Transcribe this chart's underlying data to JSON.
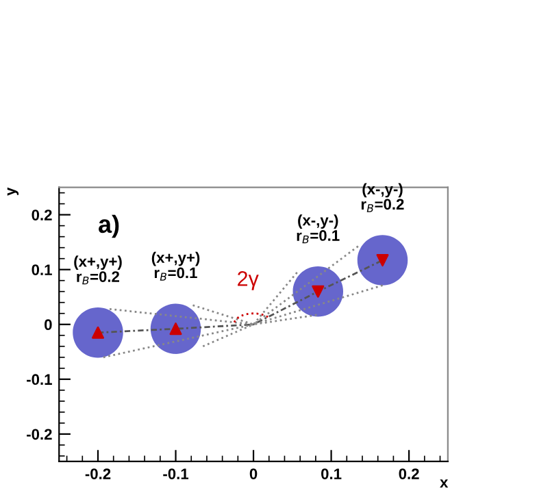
{
  "chart_data": {
    "type": "scatter",
    "xlabel": "x",
    "ylabel": "y",
    "xlim": [
      -0.25,
      0.25
    ],
    "ylim": [
      -0.25,
      0.25
    ],
    "xticks": [
      {
        "value": -0.24,
        "label": null
      },
      {
        "value": -0.22,
        "label": null
      },
      {
        "value": -0.2,
        "label": "-0.2"
      },
      {
        "value": -0.18,
        "label": null
      },
      {
        "value": -0.16,
        "label": null
      },
      {
        "value": -0.14,
        "label": null
      },
      {
        "value": -0.12,
        "label": null
      },
      {
        "value": -0.1,
        "label": "-0.1"
      },
      {
        "value": -0.08,
        "label": null
      },
      {
        "value": -0.06,
        "label": null
      },
      {
        "value": -0.04,
        "label": null
      },
      {
        "value": -0.02,
        "label": null
      },
      0,
      {
        "value": 0.02,
        "label": null
      },
      {
        "value": 0.04,
        "label": null
      },
      {
        "value": 0.06,
        "label": null
      },
      {
        "value": 0.08,
        "label": null
      },
      0.1,
      {
        "value": 0.12,
        "label": null
      },
      {
        "value": 0.14,
        "label": null
      },
      {
        "value": 0.16,
        "label": null
      },
      {
        "value": 0.18,
        "label": null
      },
      0.2,
      {
        "value": 0.22,
        "label": null
      },
      {
        "value": 0.24,
        "label": null
      }
    ],
    "yticks": [
      {
        "value": -0.24,
        "label": null
      },
      {
        "value": -0.22,
        "label": null
      },
      {
        "value": -0.2,
        "label": "-0.2"
      },
      {
        "value": -0.18,
        "label": null
      },
      {
        "value": -0.16,
        "label": null
      },
      {
        "value": -0.14,
        "label": null
      },
      {
        "value": -0.12,
        "label": null
      },
      {
        "value": -0.1,
        "label": "-0.1"
      },
      {
        "value": -0.08,
        "label": null
      },
      {
        "value": -0.06,
        "label": null
      },
      {
        "value": -0.04,
        "label": null
      },
      {
        "value": -0.02,
        "label": null
      },
      0,
      {
        "value": 0.02,
        "label": null
      },
      {
        "value": 0.04,
        "label": null
      },
      {
        "value": 0.06,
        "label": null
      },
      {
        "value": 0.08,
        "label": null
      },
      0.1,
      {
        "value": 0.12,
        "label": null
      },
      {
        "value": 0.14,
        "label": null
      },
      {
        "value": 0.16,
        "label": null
      },
      {
        "value": 0.18,
        "label": null
      },
      0.2,
      {
        "value": 0.22,
        "label": null
      },
      {
        "value": 0.24,
        "label": null
      }
    ],
    "grid": false,
    "legend": false,
    "series": [
      {
        "type": "bubble",
        "color": "#6666cc",
        "x": [
          -0.2,
          -0.1,
          0.083,
          0.166
        ],
        "values": [
          -0.015,
          -0.008,
          0.06,
          0.117
        ],
        "sizes": [
          1,
          1,
          1,
          1
        ]
      },
      {
        "type": "line",
        "color": "#555555",
        "line_style": "dashed",
        "x": [
          -0.2,
          -0.1,
          0,
          0.083,
          0.166
        ],
        "values": [
          -0.015,
          -0.008,
          0,
          0.06,
          0.117
        ]
      },
      {
        "type": "line",
        "color": "#888888",
        "line_style": "dotted",
        "x": [
          -0.185,
          0,
          0.085
        ],
        "values": [
          0.028,
          0,
          0.018
        ]
      },
      {
        "type": "line",
        "color": "#888888",
        "line_style": "dotted",
        "x": [
          -0.193,
          0,
          0.135
        ],
        "values": [
          -0.06,
          0,
          0.143
        ]
      },
      {
        "type": "line",
        "color": "#888888",
        "line_style": "dotted",
        "x": [
          -0.078,
          0,
          0.17
        ],
        "values": [
          0.035,
          0,
          0.073
        ]
      },
      {
        "type": "line",
        "color": "#888888",
        "line_style": "dotted",
        "x": [
          -0.065,
          0,
          0.058
        ],
        "values": [
          -0.04,
          0,
          0.098
        ]
      },
      {
        "color": "#cc0000",
        "marker": "triangle",
        "x": [
          -0.2,
          -0.1
        ],
        "values": [
          -0.015,
          -0.008
        ]
      },
      {
        "color": "#cc0000",
        "marker": "triangle-down",
        "x": [
          0.083,
          0.166
        ],
        "values": [
          0.06,
          0.117
        ]
      }
    ],
    "annotations": [
      "a)",
      "(x+,y+)\nr$_{B}$=0.2",
      "(x+,y+)\nr$_{B}$=0.1",
      "(x-,y-)\nr$_{B}$=0.1",
      "(x-,y-)\nr$_{B}$=0.2",
      "2γ"
    ]
  }
}
